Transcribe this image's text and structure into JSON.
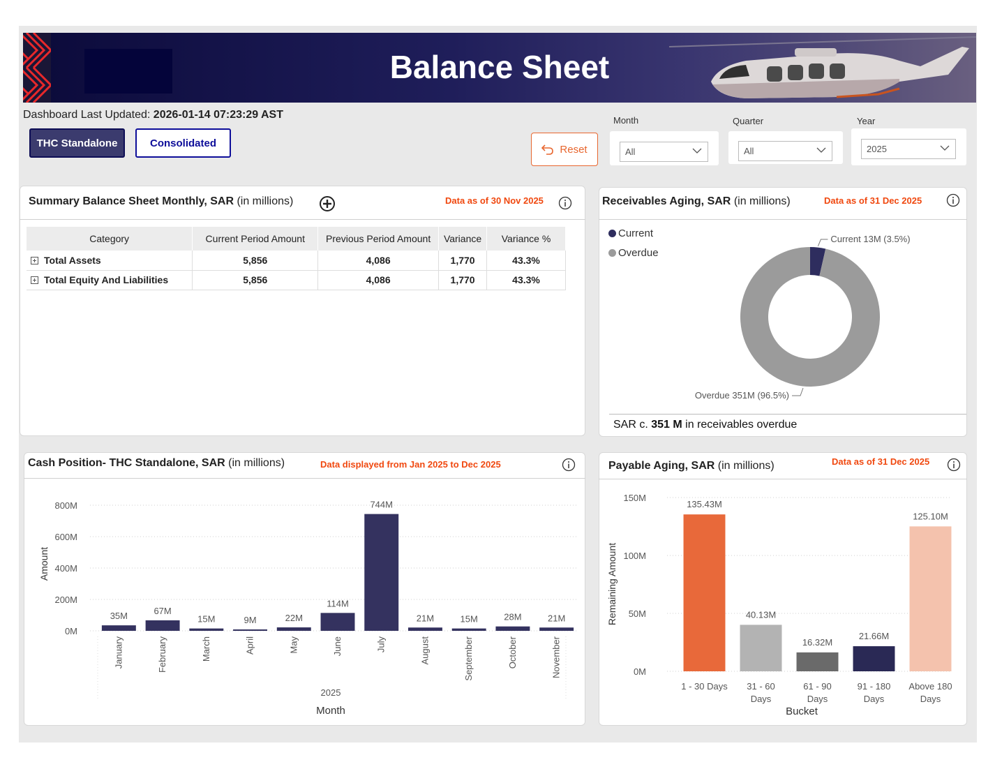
{
  "header": {
    "title": "Balance Sheet"
  },
  "status": {
    "updated_label": "Dashboard Last Updated:",
    "updated_value": "2026-01-14 07:23:29 AST"
  },
  "view_buttons": {
    "standalone": "THC Standalone",
    "consolidated": "Consolidated"
  },
  "reset_label": "Reset",
  "filters": {
    "month": {
      "label": "Month",
      "value": "All"
    },
    "quarter": {
      "label": "Quarter",
      "value": "All"
    },
    "year": {
      "label": "Year",
      "value": "2025"
    }
  },
  "summary_panel": {
    "title_bold": "Summary Balance Sheet Monthly, SAR",
    "title_unit": "(in millions)",
    "note": "Data as of 30 Nov 2025",
    "columns": [
      "Category",
      "Current Period Amount",
      "Previous Period Amount",
      "Variance",
      "Variance %"
    ],
    "rows": [
      {
        "category": "Total Assets",
        "current": "5,856",
        "previous": "4,086",
        "variance": "1,770",
        "variance_pct": "43.3%"
      },
      {
        "category": "Total Equity And Liabilities",
        "current": "5,856",
        "previous": "4,086",
        "variance": "1,770",
        "variance_pct": "43.3%"
      }
    ]
  },
  "receivables_panel": {
    "title_bold": "Receivables Aging, SAR",
    "title_unit": "(in millions)",
    "note": "Data as of 31 Dec 2025",
    "legend": [
      "Current",
      "Overdue"
    ],
    "summary_prefix": "SAR c.",
    "summary_value": "351 M",
    "summary_suffix": "in receivables overdue",
    "chart_data": {
      "type": "pie",
      "labels": [
        "Current",
        "Overdue"
      ],
      "values": [
        13,
        351
      ],
      "percent": [
        3.5,
        96.5
      ],
      "data_labels": [
        "Current 13M (3.5%)",
        "Overdue 351M (96.5%)"
      ],
      "colors": [
        "#2e2d5e",
        "#9b9b9b"
      ],
      "legend_position": "top-left"
    }
  },
  "cash_panel": {
    "title_bold": "Cash Position- THC Standalone, SAR",
    "title_unit": "(in millions)",
    "note": "Data displayed from Jan 2025 to Dec 2025",
    "chart_data": {
      "type": "bar",
      "categories": [
        "January",
        "February",
        "March",
        "April",
        "May",
        "June",
        "July",
        "August",
        "September",
        "October",
        "November"
      ],
      "values": [
        35,
        67,
        15,
        9,
        22,
        114,
        744,
        21,
        15,
        28,
        21
      ],
      "data_labels": [
        "35M",
        "67M",
        "15M",
        "9M",
        "22M",
        "114M",
        "744M",
        "21M",
        "15M",
        "28M",
        "21M"
      ],
      "year_label": "2025",
      "xlabel": "Month",
      "ylabel": "Amount",
      "yticks": [
        "0M",
        "200M",
        "400M",
        "600M",
        "800M"
      ],
      "ylim": [
        0,
        800
      ],
      "color": "#34325f",
      "grid": true
    }
  },
  "payable_panel": {
    "title_bold": "Payable Aging, SAR",
    "title_unit": "(in millions)",
    "note": "Data as of 31 Dec 2025",
    "chart_data": {
      "type": "bar",
      "categories": [
        [
          "1 - 30 Days"
        ],
        [
          "31 - 60",
          "Days"
        ],
        [
          "61 - 90",
          "Days"
        ],
        [
          "91 - 180",
          "Days"
        ],
        [
          "Above 180",
          "Days"
        ]
      ],
      "values": [
        135.43,
        40.13,
        16.32,
        21.66,
        125.1
      ],
      "data_labels": [
        "135.43M",
        "40.13M",
        "16.32M",
        "21.66M",
        "125.10M"
      ],
      "colors": [
        "#e8693a",
        "#b3b3b3",
        "#6a6a6a",
        "#2a2955",
        "#f4c2ad"
      ],
      "xlabel": "Bucket",
      "ylabel": "Remaining Amount",
      "yticks": [
        "0M",
        "50M",
        "100M",
        "150M"
      ],
      "ylim": [
        0,
        150
      ],
      "grid": true
    }
  }
}
